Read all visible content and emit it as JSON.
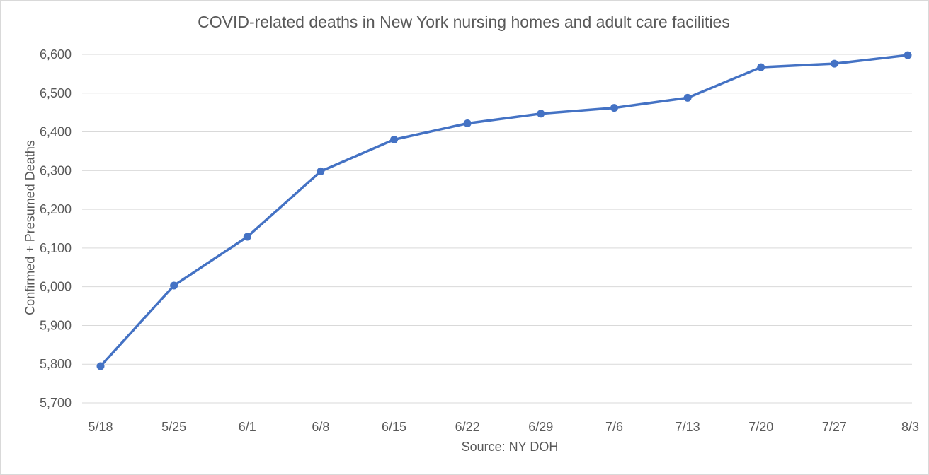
{
  "chart_data": {
    "type": "line",
    "title": "COVID-related deaths in New York nursing homes and adult care facilities",
    "xlabel": "Source: NY DOH",
    "ylabel": "Confirmed + Presumed Deaths",
    "categories": [
      "5/18",
      "5/25",
      "6/1",
      "6/8",
      "6/15",
      "6/22",
      "6/29",
      "7/6",
      "7/13",
      "7/20",
      "7/27",
      "8/3"
    ],
    "series": [
      {
        "values": [
          5795,
          6003,
          6129,
          6298,
          6380,
          6422,
          6447,
          6462,
          6488,
          6567,
          6576,
          6598
        ]
      }
    ],
    "ylim": [
      5700,
      6600
    ],
    "yticks": [
      5700,
      5800,
      5900,
      6000,
      6100,
      6200,
      6300,
      6400,
      6500,
      6600
    ],
    "ytick_labels": [
      "5,700",
      "5,800",
      "5,900",
      "6,000",
      "6,100",
      "6,200",
      "6,300",
      "6,400",
      "6,500",
      "6,600"
    ],
    "grid": true,
    "legend": "none",
    "colors": {
      "line": "#4472c4",
      "grid": "#d9d9d9",
      "text": "#595959"
    }
  }
}
